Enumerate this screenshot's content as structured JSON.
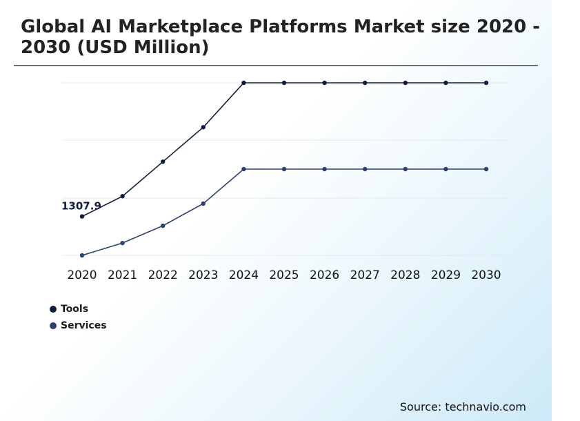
{
  "header": {
    "title": "Global AI Marketplace Platforms Market size 2020 - 2030 (USD Million)"
  },
  "footer": {
    "source": "Source: technavio.com"
  },
  "colors": {
    "tools": "#0e1d3f",
    "services": "#2b4170",
    "grid": "#e4e8ee"
  },
  "chart_data": {
    "type": "line",
    "x": [
      "2020",
      "2021",
      "2022",
      "2023",
      "2024",
      "2025",
      "2026",
      "2027",
      "2028",
      "2029",
      "2030"
    ],
    "series": [
      {
        "name": "Tools",
        "values": [
          1307.9,
          1390,
          1530,
          1670,
          1850,
          1850,
          1850,
          1850,
          1850,
          1850,
          1850
        ]
      },
      {
        "name": "Services",
        "values": [
          1150,
          1200,
          1270,
          1360,
          1500,
          1500,
          1500,
          1500,
          1500,
          1500,
          1500
        ]
      }
    ],
    "annotations": [
      {
        "series": 0,
        "index": 0,
        "text": "1307.9"
      }
    ],
    "ylim": [
      1150,
      1850
    ],
    "grid": true,
    "legend": "bottom-left"
  }
}
